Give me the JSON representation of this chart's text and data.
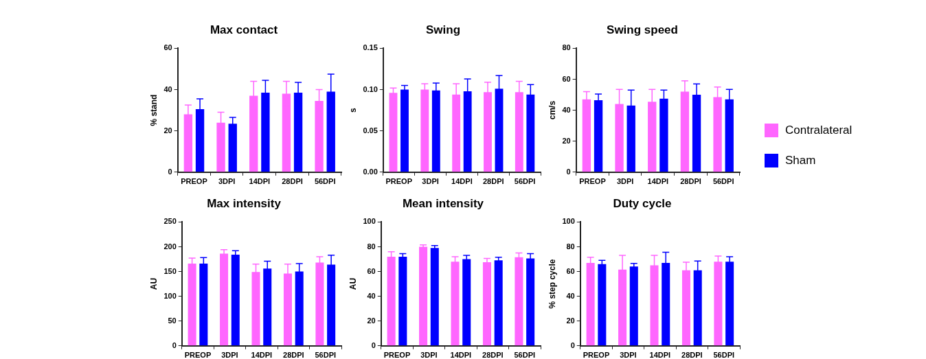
{
  "chart_data": [
    {
      "type": "bar",
      "title": "Max contact",
      "ylabel": "% stand",
      "categories": [
        "PREOP",
        "3DPI",
        "14DPI",
        "28DPI",
        "56DPI"
      ],
      "ylim": [
        0,
        60
      ],
      "yticks": [
        0,
        20,
        40,
        60
      ],
      "grid": false,
      "legend": false,
      "series": [
        {
          "color": "#ff66ff",
          "values": [
            28,
            24,
            37,
            38,
            34.5
          ],
          "errors": [
            4.5,
            5,
            7,
            6,
            5.5
          ]
        },
        {
          "color": "#0000ff",
          "values": [
            30.5,
            23.5,
            38.5,
            38.5,
            39
          ],
          "errors": [
            5,
            3,
            6,
            5,
            8.5
          ]
        }
      ]
    },
    {
      "type": "bar",
      "title": "Swing",
      "ylabel": "s",
      "categories": [
        "PREOP",
        "3DPI",
        "14DPI",
        "28DPI",
        "56DPI"
      ],
      "ylim": [
        0,
        0.15
      ],
      "yticks": [
        {
          "value": 0,
          "label": "0.00"
        },
        {
          "value": 0.05,
          "label": "0.05"
        },
        {
          "value": 0.1,
          "label": "0.10"
        },
        {
          "value": 0.15,
          "label": "0.15"
        }
      ],
      "grid": false,
      "legend": false,
      "series": [
        {
          "color": "#ff66ff",
          "values": [
            0.096,
            0.1,
            0.094,
            0.097,
            0.097
          ],
          "errors": [
            0.006,
            0.007,
            0.013,
            0.012,
            0.013
          ]
        },
        {
          "color": "#0000ff",
          "values": [
            0.1,
            0.099,
            0.098,
            0.101,
            0.094
          ],
          "errors": [
            0.005,
            0.009,
            0.015,
            0.016,
            0.012
          ]
        }
      ]
    },
    {
      "type": "bar",
      "title": "Swing speed",
      "ylabel": "cm/s",
      "categories": [
        "PREOP",
        "3DPI",
        "14DPI",
        "28DPI",
        "56DPI"
      ],
      "ylim": [
        0,
        80
      ],
      "yticks": [
        0,
        20,
        40,
        60,
        80
      ],
      "grid": false,
      "legend": "right",
      "series": [
        {
          "name": "Contralateral",
          "color": "#ff66ff",
          "values": [
            47,
            44,
            45.5,
            52,
            48.5
          ],
          "errors": [
            5,
            9.5,
            8,
            7,
            6.5
          ]
        },
        {
          "name": "Sham",
          "color": "#0000ff",
          "values": [
            46.5,
            43,
            47.5,
            50,
            47
          ],
          "errors": [
            4,
            10,
            5.5,
            7,
            6.5
          ]
        }
      ]
    },
    {
      "type": "bar",
      "title": "Max intensity",
      "ylabel": "AU",
      "categories": [
        "PREOP",
        "3DPI",
        "14DPI",
        "28DPI",
        "56DPI"
      ],
      "ylim": [
        0,
        250
      ],
      "yticks": [
        0,
        50,
        100,
        150,
        200,
        250
      ],
      "grid": false,
      "legend": false,
      "series": [
        {
          "color": "#ff66ff",
          "values": [
            166,
            186,
            149,
            146,
            168
          ],
          "errors": [
            11,
            8,
            16,
            19,
            12
          ]
        },
        {
          "color": "#0000ff",
          "values": [
            166,
            184,
            156,
            150,
            164
          ],
          "errors": [
            12,
            8,
            15,
            16,
            19
          ]
        }
      ]
    },
    {
      "type": "bar",
      "title": "Mean intensity",
      "ylabel": "AU",
      "categories": [
        "PREOP",
        "3DPI",
        "14DPI",
        "28DPI",
        "56DPI"
      ],
      "ylim": [
        0,
        100
      ],
      "yticks": [
        0,
        20,
        40,
        60,
        80,
        100
      ],
      "grid": false,
      "legend": false,
      "series": [
        {
          "color": "#ff66ff",
          "values": [
            72,
            80,
            68,
            67.5,
            71.5
          ],
          "errors": [
            4,
            1.5,
            4,
            3,
            3.5
          ]
        },
        {
          "color": "#0000ff",
          "values": [
            72,
            79,
            70,
            69,
            70.5
          ],
          "errors": [
            2.5,
            2,
            3,
            2.5,
            4
          ]
        }
      ]
    },
    {
      "type": "bar",
      "title": "Duty cycle",
      "ylabel": "% step cycle",
      "categories": [
        "PREOP",
        "3DPI",
        "14DPI",
        "28DPI",
        "56DPI"
      ],
      "ylim": [
        0,
        100
      ],
      "yticks": [
        0,
        20,
        40,
        60,
        80,
        100
      ],
      "grid": false,
      "legend": false,
      "series": [
        {
          "color": "#ff66ff",
          "values": [
            67,
            61.5,
            65,
            61,
            68
          ],
          "errors": [
            4.5,
            11.5,
            8,
            6.5,
            4.5
          ]
        },
        {
          "color": "#0000ff",
          "values": [
            66,
            64,
            67,
            61,
            68
          ],
          "errors": [
            3,
            2.5,
            8.5,
            7.5,
            4
          ]
        }
      ]
    }
  ]
}
